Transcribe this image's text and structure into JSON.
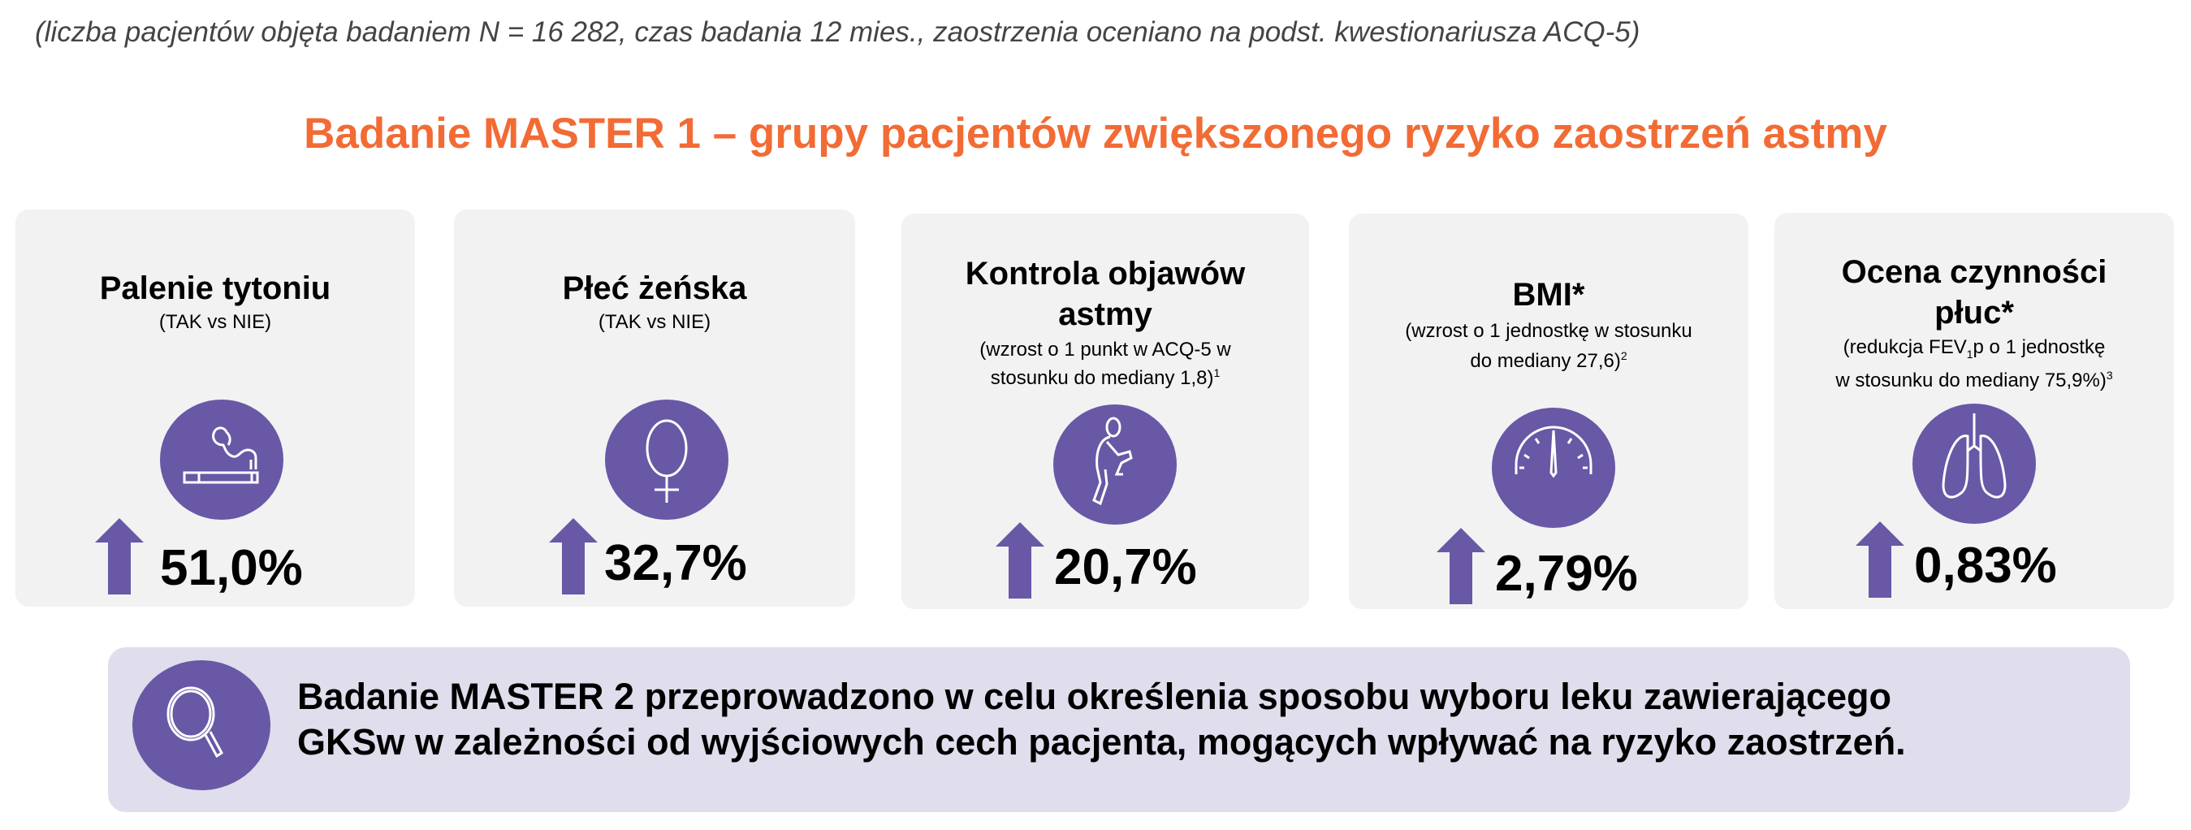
{
  "subtitle": "(liczba pacjentów objęta badaniem N = 16 282, czas badania 12 mies., zaostrzenia oceniano na podst. kwestionariusza ACQ-5)",
  "title": "Badanie MASTER 1 – grupy pacjentów zwiększonego ryzyko zaostrzeń astmy",
  "colors": {
    "accent": "#f26b35",
    "purple": "#6858a6",
    "card_bg": "#f2f2f2",
    "bottom_bg": "#e0ddec"
  },
  "cards": [
    {
      "title1": "Palenie tytoniu",
      "sub1": "(TAK vs NIE)",
      "icon": "cigarette-icon",
      "value": "51,0%",
      "trend": "up"
    },
    {
      "title1": "Płeć żeńska",
      "sub1": "(TAK vs NIE)",
      "icon": "female-symbol-icon",
      "value": "32,7%",
      "trend": "up"
    },
    {
      "title1": "Kontrola objawów",
      "title2": "astmy",
      "sub1": "(wzrost o 1 punkt w ACQ-5 w",
      "sub2": "stosunku do mediany 1,8)",
      "sub2_sup": "1",
      "icon": "coughing-person-icon",
      "value": "20,7%",
      "trend": "up"
    },
    {
      "title1": "BMI*",
      "sub1": "(wzrost o 1 jednostkę w stosunku",
      "sub2": "do mediany 27,6)",
      "sub2_sup": "2",
      "icon": "scale-gauge-icon",
      "value": "2,79%",
      "trend": "up"
    },
    {
      "title1": "Ocena czynności",
      "title2": "płuc*",
      "sub1a": "(redukcja FEV",
      "sub1_sub": "1",
      "sub1b": "p o 1 jednostkę",
      "sub2": "w stosunku do mediany 75,9%)",
      "sub2_sup": "3",
      "icon": "lungs-icon",
      "value": "0,83%",
      "trend": "up"
    }
  ],
  "bottom": {
    "icon": "magnifier-icon",
    "line1": "Badanie MASTER 2 przeprowadzono w celu określenia sposobu wyboru leku zawierającego",
    "line2": "GKSw w zależności od wyjściowych cech pacjenta, mogących wpływać na ryzyko zaostrzeń."
  }
}
